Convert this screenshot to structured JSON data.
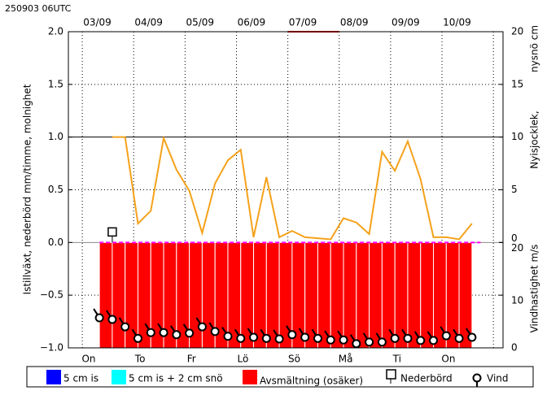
{
  "timestamp": "250903 06UTC",
  "chart_data": {
    "type": "line",
    "ylabel": "Istillväxt, nederbörd mm/timme, molnighet",
    "y2label": "Nyisjocklek,",
    "y2label_color": "#cc00cc",
    "y2label2": "nysnö cm",
    "y3label": "Vindhastighet m/s",
    "xlim": [
      -6.5,
      196.5
    ],
    "xticks": [
      {
        "value": 7,
        "label": "03/09"
      },
      {
        "value": 31,
        "label": "04/09"
      },
      {
        "value": 55,
        "label": "05/09"
      },
      {
        "value": 79,
        "label": "06/09"
      },
      {
        "value": 103,
        "label": "07/09"
      },
      {
        "value": 127,
        "label": "08/09"
      },
      {
        "value": 151,
        "label": "09/09"
      },
      {
        "value": 175,
        "label": "10/09"
      }
    ],
    "x2ticks": [
      {
        "value": 3,
        "label": "On"
      },
      {
        "value": 27,
        "label": "To"
      },
      {
        "value": 51,
        "label": "Fr"
      },
      {
        "value": 75,
        "label": "Lö"
      },
      {
        "value": 99,
        "label": "Sö"
      },
      {
        "value": 123,
        "label": "Må"
      },
      {
        "value": 147,
        "label": "Ti"
      },
      {
        "value": 171,
        "label": "On"
      }
    ],
    "xgrid": [
      0,
      24,
      48,
      72,
      96,
      120,
      144,
      168,
      192
    ],
    "ylim": [
      -1,
      2
    ],
    "yticks": [
      {
        "value": -1,
        "label": "−1.0"
      },
      {
        "value": -0.5,
        "label": "−0.5"
      },
      {
        "value": 0,
        "label": "0.0"
      },
      {
        "value": 0.5,
        "label": "0.5"
      },
      {
        "value": 1,
        "label": "1.0"
      },
      {
        "value": 1.5,
        "label": "1.5"
      },
      {
        "value": 2,
        "label": "2.0"
      }
    ],
    "y2lim": [
      -10,
      20
    ],
    "y2ticks": [
      0,
      5,
      10,
      15,
      20
    ],
    "y3lim": [
      0,
      60
    ],
    "y3ticks": [
      0,
      10,
      20
    ],
    "grid": true,
    "series": [
      {
        "type": "line",
        "color": "#f5a21b",
        "x": [
          14,
          20,
          26,
          32,
          38,
          44,
          50,
          56,
          62,
          68,
          74,
          80,
          86,
          92,
          98,
          104,
          110,
          116,
          122,
          128,
          134,
          140,
          146,
          152,
          158,
          164,
          170,
          176,
          182
        ],
        "values": [
          1.0,
          1.0,
          0.18,
          0.3,
          0.99,
          0.69,
          0.49,
          0.09,
          0.56,
          0.78,
          0.88,
          0.05,
          0.62,
          0.05,
          0.11,
          0.05,
          0.04,
          0.03,
          0.23,
          0.19,
          0.08,
          0.86,
          0.68,
          0.96,
          0.6,
          0.05,
          0.05,
          0.03,
          0.18
        ]
      },
      {
        "type": "bar",
        "legend": 2,
        "color": "#ff0000",
        "x": [
          11,
          17,
          23,
          29,
          35,
          41,
          47,
          53,
          59,
          65,
          71,
          77,
          83,
          89,
          95,
          101,
          107,
          113,
          119,
          125,
          131,
          137,
          143,
          149,
          155,
          161,
          167,
          173,
          179
        ],
        "values": [
          -1,
          -1,
          -1,
          -1,
          -1,
          -1,
          -1,
          -1,
          -1,
          -1,
          -1,
          -1,
          -1,
          -1,
          -1,
          -1,
          -1,
          -1,
          -1,
          -1,
          -1,
          -1,
          -1,
          -1,
          -1,
          -1,
          -1,
          -1,
          -1
        ]
      },
      {
        "type": "dashed",
        "axis": "y2",
        "color": "#ff00ff",
        "x": [
          8,
          186
        ],
        "values": [
          0,
          0
        ]
      },
      {
        "type": "line",
        "color": "#dd0000",
        "x": [
          96,
          120
        ],
        "values": [
          2,
          2
        ]
      },
      {
        "type": "marker",
        "legend": 3,
        "x": [
          14
        ],
        "values": [
          0.1
        ]
      },
      {
        "type": "wind",
        "legend": 4,
        "axis": "y3",
        "x": [
          8,
          14,
          20,
          26,
          32,
          38,
          44,
          50,
          56,
          62,
          68,
          74,
          80,
          86,
          92,
          98,
          104,
          110,
          116,
          122,
          128,
          134,
          140,
          146,
          152,
          158,
          164,
          170,
          176,
          182
        ],
        "values": [
          5.7,
          5.4,
          4.0,
          1.8,
          2.9,
          2.9,
          2.5,
          2.8,
          4.0,
          3.1,
          2.2,
          1.8,
          2.0,
          1.8,
          1.7,
          2.5,
          2.0,
          1.8,
          1.5,
          1.5,
          0.8,
          1.1,
          1.1,
          1.8,
          1.8,
          1.4,
          1.4,
          2.3,
          1.8,
          2.0
        ]
      }
    ],
    "legend": [
      {
        "label": "5 cm is",
        "color": "#0000ff"
      },
      {
        "label": "5 cm is + 2 cm snö",
        "color": "#00ffff"
      },
      {
        "label": "Avsmältning (osäker)",
        "color": "#ff0000"
      },
      {
        "label": "Nederbörd"
      },
      {
        "label": "Vind"
      }
    ]
  }
}
